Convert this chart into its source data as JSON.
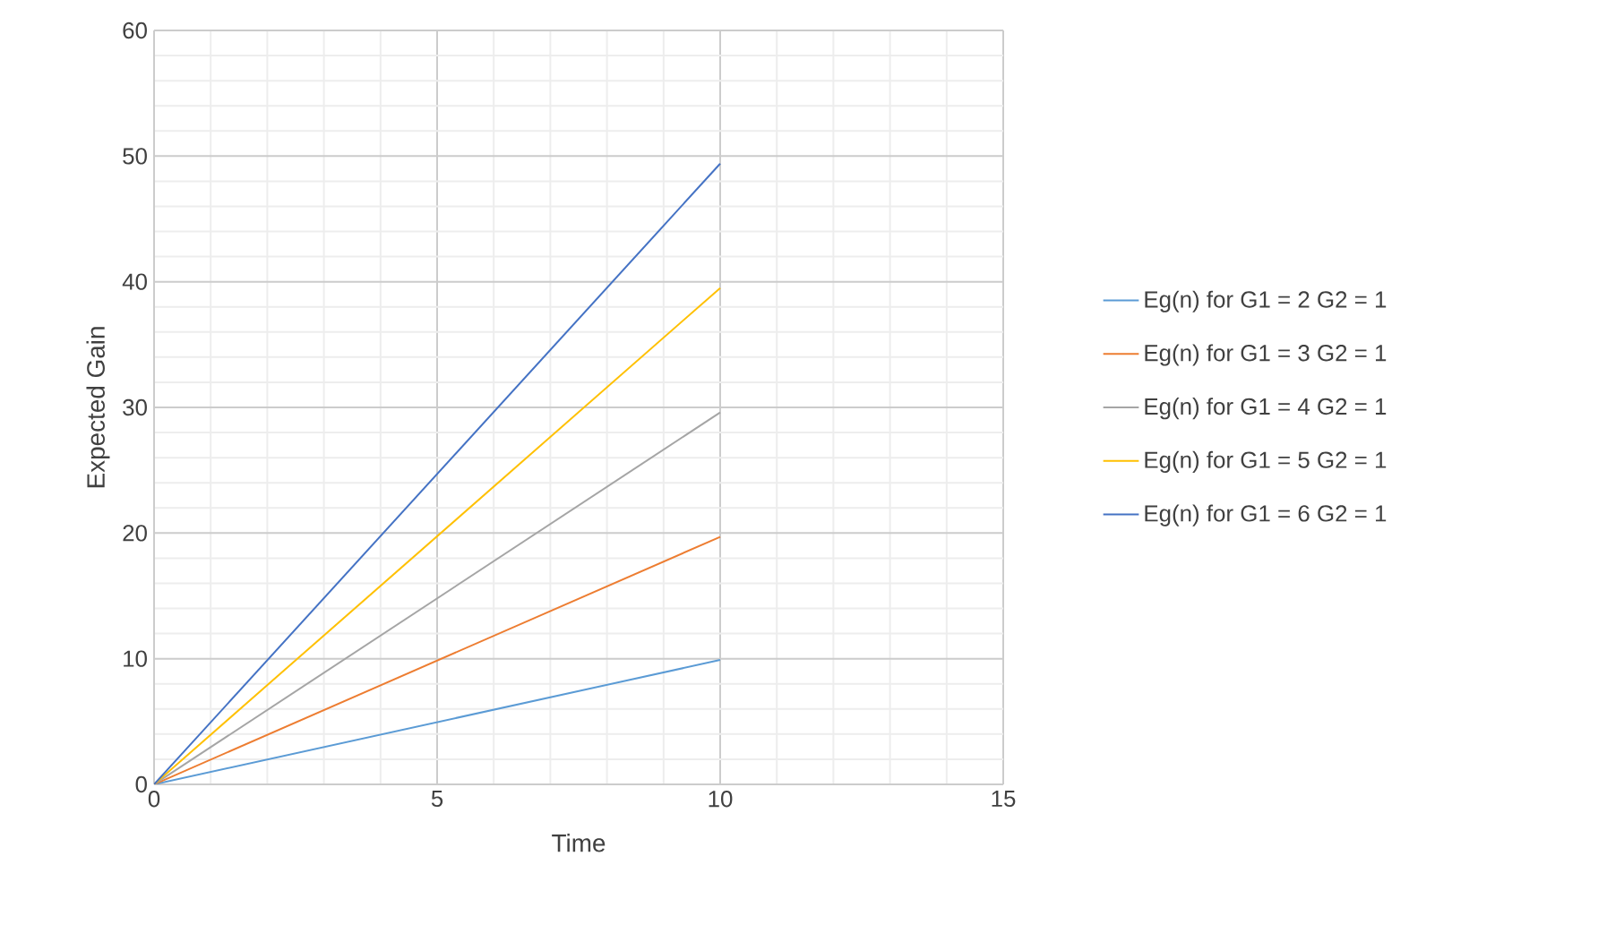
{
  "chart_data": {
    "type": "line",
    "xlabel": "Time",
    "ylabel": "Expected Gain",
    "xlim": [
      0,
      15
    ],
    "ylim": [
      0,
      60
    ],
    "xticks": [
      0,
      5,
      10,
      15
    ],
    "yticks": [
      0,
      10,
      20,
      30,
      40,
      50,
      60
    ],
    "grid": true,
    "legend": "right",
    "marker": "none",
    "line_style": "solid",
    "x": [
      0,
      10
    ],
    "series": [
      {
        "name": "Eg(n) for G1 = 2 G2 = 1",
        "color": "#5b9bd5",
        "values": [
          0,
          9.9
        ]
      },
      {
        "name": "Eg(n) for G1 = 3 G2 = 1",
        "color": "#ed7d31",
        "values": [
          0,
          19.7
        ]
      },
      {
        "name": "Eg(n) for G1 = 4 G2 = 1",
        "color": "#a5a5a5",
        "values": [
          0,
          29.6
        ]
      },
      {
        "name": "Eg(n) for G1 = 5 G2 = 1",
        "color": "#ffc000",
        "values": [
          0,
          39.5
        ]
      },
      {
        "name": "Eg(n) for G1 = 6 G2 = 1",
        "color": "#4472c4",
        "values": [
          0,
          49.4
        ]
      }
    ]
  }
}
